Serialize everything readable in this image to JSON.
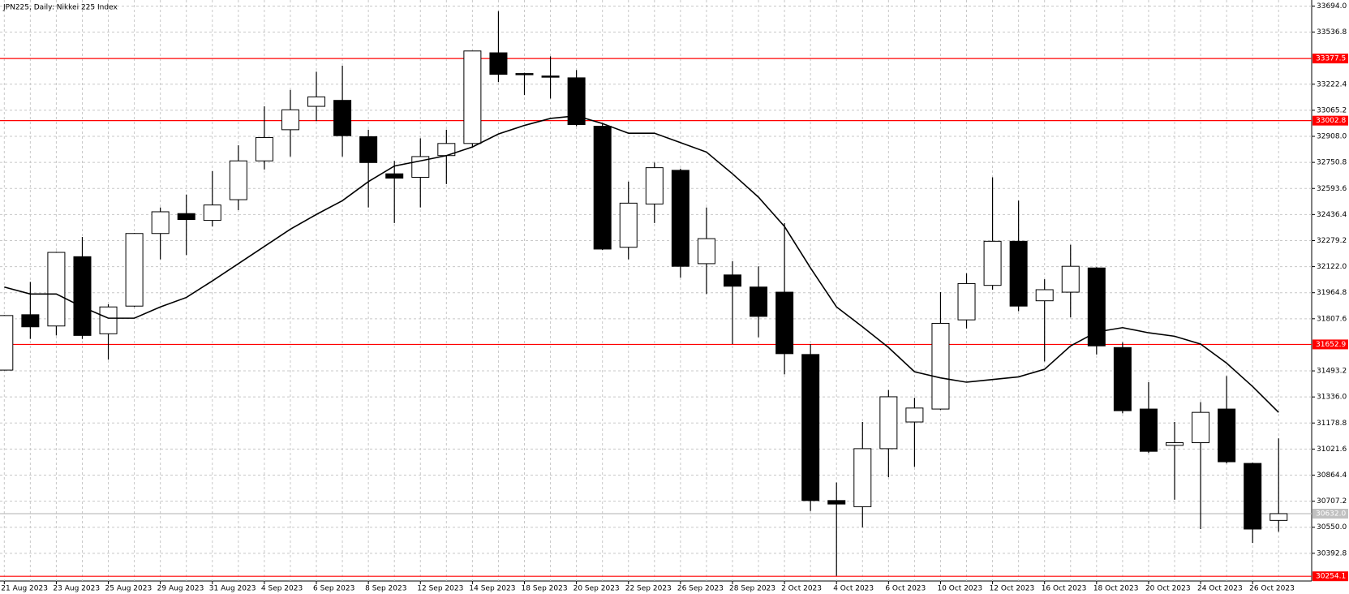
{
  "chart_data": {
    "type": "candlestick",
    "title": "JPN225, Daily:  Nikkei 225 Index",
    "categories": [
      "21 Aug 2023",
      null,
      "23 Aug 2023",
      null,
      "25 Aug 2023",
      null,
      "29 Aug 2023",
      null,
      "31 Aug 2023",
      null,
      "4 Sep 2023",
      null,
      "6 Sep 2023",
      null,
      "8 Sep 2023",
      null,
      "12 Sep 2023",
      null,
      "14 Sep 2023",
      null,
      "18 Sep 2023",
      null,
      "20 Sep 2023",
      null,
      "22 Sep 2023",
      null,
      "26 Sep 2023",
      null,
      "28 Sep 2023",
      null,
      "2 Oct 2023",
      null,
      "4 Oct 2023",
      null,
      "6 Oct 2023",
      null,
      "10 Oct 2023",
      null,
      "12 Oct 2023",
      null,
      "16 Oct 2023",
      null,
      "18 Oct 2023",
      null,
      "20 Oct 2023",
      null,
      "24 Oct 2023",
      null,
      "26 Oct 2023",
      null
    ],
    "open": [
      31498,
      31832,
      31764,
      32182,
      31717,
      31884,
      32322,
      32442,
      32401,
      32526,
      32760,
      32948,
      33089,
      33125,
      32906,
      32682,
      32661,
      32792,
      32865,
      33412,
      33287,
      33272,
      33261,
      32969,
      32239,
      32500,
      32703,
      32140,
      32072,
      31999,
      31968,
      31592,
      30711,
      30674,
      31024,
      31185,
      31263,
      31801,
      32009,
      32275,
      31916,
      31968,
      32114,
      31634,
      31263,
      31044,
      31060,
      31263,
      30935,
      30591
    ],
    "high": [
      31830,
      32030,
      32212,
      32301,
      31895,
      32325,
      32479,
      32557,
      32698,
      32854,
      33089,
      33188,
      33298,
      33334,
      32948,
      32760,
      32896,
      32948,
      33425,
      33663,
      33292,
      33391,
      33308,
      32985,
      32635,
      32750,
      32713,
      32479,
      32155,
      32124,
      32385,
      31655,
      30820,
      31185,
      31378,
      31331,
      31968,
      32082,
      32661,
      32520,
      32046,
      32254,
      32119,
      31665,
      31425,
      31185,
      31305,
      31462,
      30940,
      31086
    ],
    "low": [
      31495,
      31686,
      31707,
      31686,
      31561,
      31879,
      32166,
      32192,
      32364,
      32463,
      32708,
      32786,
      33000,
      32786,
      32479,
      32385,
      32479,
      32620,
      32844,
      33235,
      33157,
      33136,
      32969,
      32223,
      32166,
      32385,
      32056,
      31957,
      31655,
      31696,
      31472,
      30648,
      30257,
      30549,
      30852,
      30914,
      31258,
      31749,
      31983,
      31853,
      31550,
      31816,
      31592,
      31237,
      30998,
      30716,
      30539,
      30935,
      30455,
      30523
    ],
    "close": [
      31827,
      31759,
      32208,
      31707,
      31879,
      32322,
      32453,
      32406,
      32494,
      32760,
      32901,
      33068,
      33146,
      32912,
      32750,
      32656,
      32786,
      32865,
      33423,
      33282,
      33282,
      33266,
      32979,
      32228,
      32505,
      32719,
      32124,
      32291,
      32004,
      31822,
      31597,
      30711,
      30690,
      31024,
      31337,
      31269,
      31780,
      32020,
      32275,
      31884,
      31983,
      32124,
      31644,
      31253,
      31008,
      31060,
      31243,
      30945,
      30539,
      30632
    ],
    "ma": [
      31999,
      31957,
      31957,
      31879,
      31811,
      31811,
      31879,
      31936,
      32036,
      32140,
      32244,
      32348,
      32437,
      32520,
      32635,
      32729,
      32760,
      32792,
      32844,
      32922,
      32974,
      33016,
      33032,
      32985,
      32927,
      32927,
      32870,
      32813,
      32682,
      32541,
      32364,
      32114,
      31879,
      31759,
      31634,
      31488,
      31451,
      31425,
      31441,
      31457,
      31503,
      31644,
      31728,
      31754,
      31723,
      31702,
      31655,
      31540,
      31399,
      31243
    ],
    "ylim": [
      30225.6,
      33730.5
    ],
    "yticks": [
      {
        "value": 33694,
        "label": "33694.0"
      },
      33536.8,
      33222.4,
      33065.2,
      {
        "value": 32908,
        "label": "32908.0"
      },
      32750.8,
      32593.6,
      32436.4,
      32279.2,
      {
        "value": 32122,
        "label": "32122.0"
      },
      31964.8,
      31807.6,
      31493.2,
      {
        "value": 31336,
        "label": "31336.0"
      },
      31178.8,
      31021.6,
      30864.4,
      30707.2,
      {
        "value": 30550,
        "label": "30550.0"
      },
      30392.8
    ],
    "hlines": [
      {
        "value": 33377.5,
        "label": "33377.5",
        "color": "#ff0000"
      },
      {
        "value": 33002.8,
        "label": "33002.8",
        "color": "#ff0000"
      },
      {
        "value": 31652.9,
        "label": "31652.9",
        "color": "#ff0000"
      },
      {
        "value": 30632,
        "label": "30632.0",
        "color": "#c0c0c0"
      },
      {
        "value": 30254.1,
        "label": "30254.1",
        "color": "#ff0000"
      }
    ],
    "grid": true
  }
}
